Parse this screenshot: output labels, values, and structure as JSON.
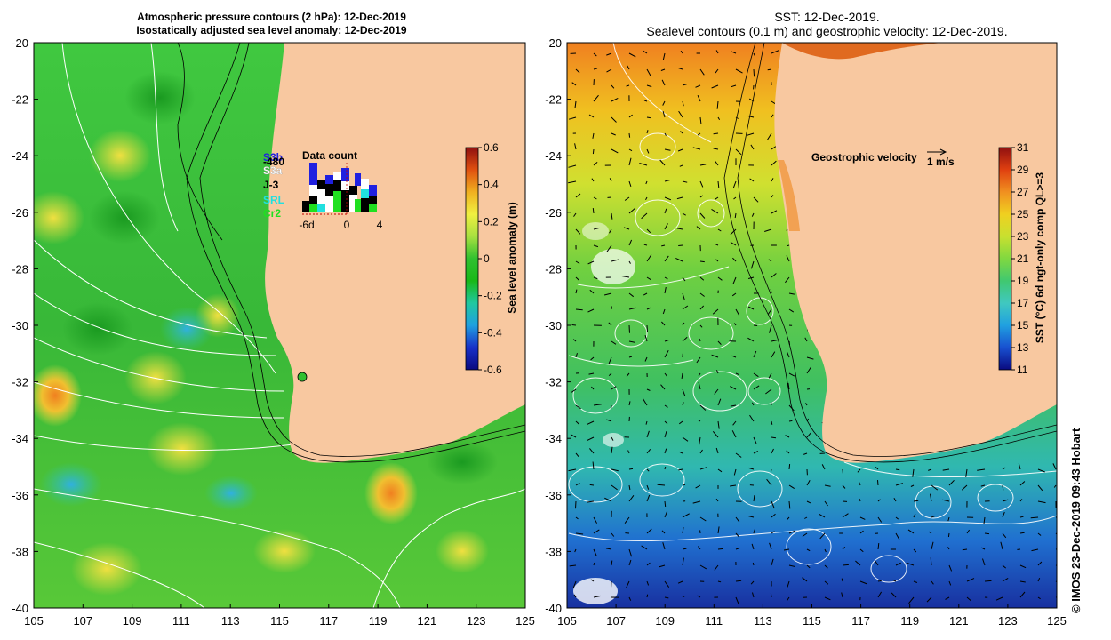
{
  "left_panel": {
    "title_line1": "Atmospheric pressure contours (2 hPa): 12-Dec-2019",
    "title_line2": "Isostatically adjusted sea level anomaly: 12-Dec-2019",
    "colorbar": {
      "label": "Sea level anomaly (m)",
      "ticks": [
        "0.6",
        "0.4",
        "0.2",
        "0",
        "-0.2",
        "-0.4",
        "-0.6"
      ],
      "colors": [
        "#0a0a80",
        "#1830c8",
        "#20a0e0",
        "#20c8a0",
        "#18b818",
        "#40d040",
        "#a8e040",
        "#f0f040",
        "#f0b020",
        "#e05010",
        "#901010"
      ]
    },
    "data_count": {
      "title": "Data count",
      "missions": [
        {
          "label": "S3b",
          "color": "#2020e0"
        },
        {
          "label": "-480",
          "color": "#000000"
        },
        {
          "label": "S3a",
          "color": "#ffffff"
        },
        {
          "label": "J-3",
          "color": "#000000"
        },
        {
          "label": "SRL",
          "color": "#20e0e0"
        },
        {
          "label": "Cr2",
          "color": "#20e020"
        }
      ],
      "axis_labels": [
        "-6d",
        "0",
        "4"
      ]
    },
    "colors": {
      "sea": "#30c030",
      "land": "#f8c8a0"
    }
  },
  "right_panel": {
    "title_line1": "SST: 12-Dec-2019.",
    "title_line2": "Sealevel contours (0.1 m) and geostrophic velocity: 12-Dec-2019.",
    "velocity_label": "Geostrophic velocity",
    "velocity_scale": "1 m/s",
    "colorbar": {
      "label": "SST (°C) 6d ngt-only comp QL>=3",
      "ticks": [
        "31",
        "29",
        "27",
        "25",
        "23",
        "21",
        "19",
        "17",
        "15",
        "13",
        "11"
      ],
      "colors": [
        "#0a0a80",
        "#1850d0",
        "#20a0e0",
        "#40c8c0",
        "#40c870",
        "#80d840",
        "#c8e030",
        "#f0d020",
        "#f09020",
        "#e04010",
        "#901010"
      ]
    },
    "colors": {
      "land": "#f8c8a0"
    }
  },
  "axes": {
    "lat_ticks": [
      "-20",
      "-22",
      "-24",
      "-26",
      "-28",
      "-30",
      "-32",
      "-34",
      "-36",
      "-38",
      "-40"
    ],
    "lon_ticks": [
      "105",
      "107",
      "109",
      "111",
      "113",
      "115",
      "117",
      "119",
      "121",
      "123",
      "125"
    ]
  },
  "credit": "© IMOS 23-Dec-2019 09:43 Hobart"
}
